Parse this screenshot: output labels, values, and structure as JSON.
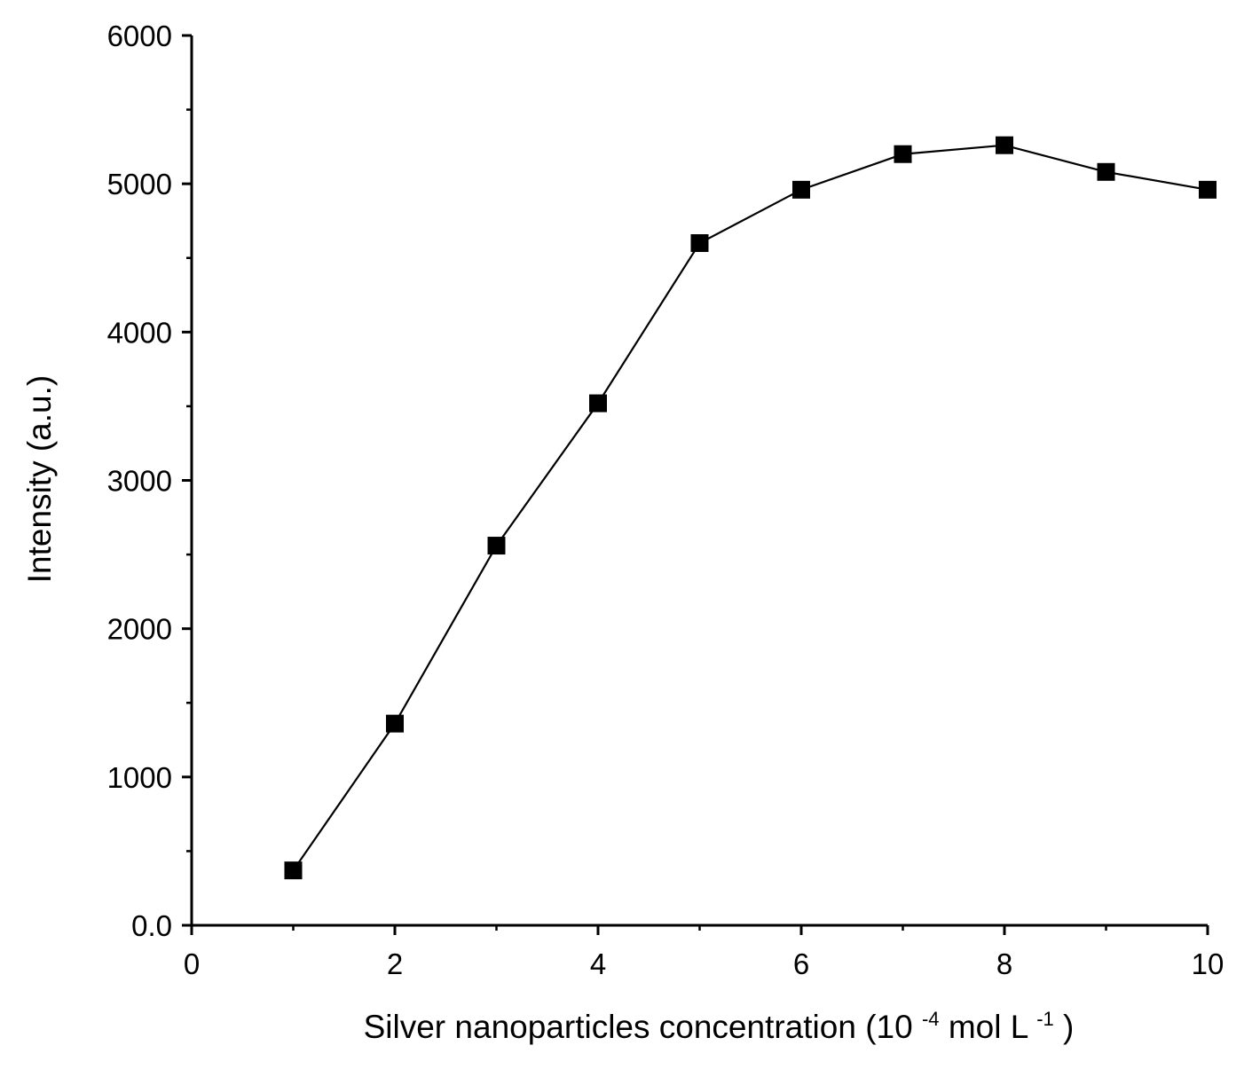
{
  "chart_data": {
    "type": "line",
    "title": "",
    "xlabel": {
      "prefix": "Silver nanoparticles concentration (10",
      "exp1": "-4",
      "middle": " mol L",
      "exp2": "-1",
      "suffix": ")"
    },
    "ylabel": "Intensity (a.u.)",
    "xlim": [
      0,
      10
    ],
    "ylim": [
      0,
      6000
    ],
    "xticks": [
      0,
      2,
      4,
      6,
      8,
      10
    ],
    "xtick_labels": [
      "0",
      "2",
      "4",
      "6",
      "8",
      "10"
    ],
    "yticks": [
      0,
      1000,
      2000,
      3000,
      4000,
      5000,
      6000
    ],
    "ytick_labels": [
      "0.0",
      "1000",
      "2000",
      "3000",
      "4000",
      "5000",
      "6000"
    ],
    "grid": false,
    "series": [
      {
        "name": "Intensity",
        "marker": "square",
        "color": "#000000",
        "x": [
          1,
          2,
          3,
          4,
          5,
          6,
          7,
          8,
          9,
          10
        ],
        "values": [
          370,
          1360,
          2560,
          3520,
          4600,
          4960,
          5200,
          5260,
          5080,
          4960
        ]
      }
    ]
  }
}
